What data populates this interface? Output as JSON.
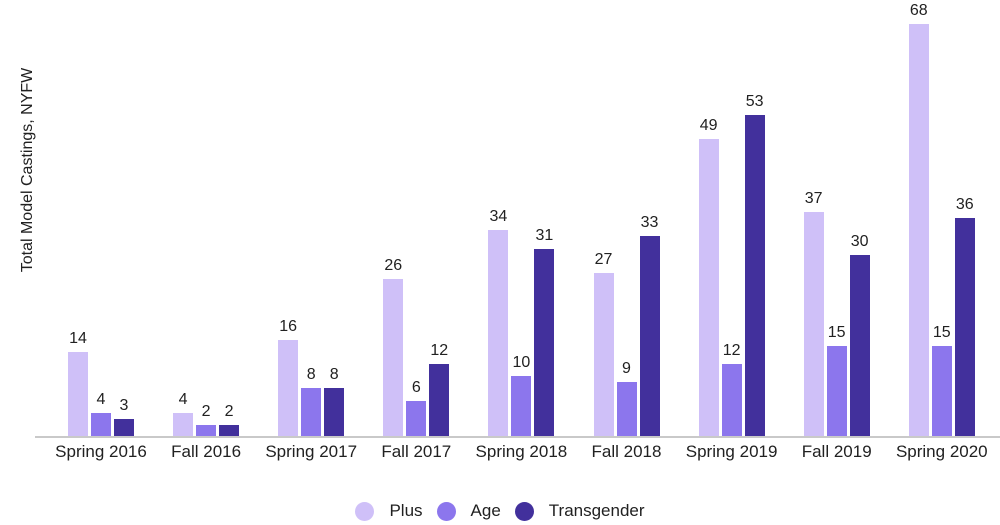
{
  "chart_data": {
    "type": "bar",
    "title": "",
    "ylabel": "Total Model Castings, NYFW",
    "xlabel": "",
    "categories": [
      "Spring 2016",
      "Fall 2016",
      "Spring 2017",
      "Fall 2017",
      "Spring 2018",
      "Fall 2018",
      "Spring 2019",
      "Fall 2019",
      "Spring 2020"
    ],
    "series": [
      {
        "name": "Plus",
        "color": "#CFC0F8",
        "values": [
          14,
          4,
          16,
          26,
          34,
          27,
          49,
          37,
          68
        ]
      },
      {
        "name": "Age",
        "color": "#8C76ED",
        "values": [
          4,
          2,
          8,
          6,
          10,
          9,
          12,
          15,
          15
        ]
      },
      {
        "name": "Transgender",
        "color": "#42309C",
        "values": [
          3,
          2,
          8,
          12,
          31,
          33,
          53,
          30,
          36
        ]
      }
    ],
    "ylim": [
      0,
      68
    ],
    "grid": false,
    "legend_position": "bottom",
    "value_labels": true,
    "axis_color": "#c9c9c9",
    "label_color": "#212121",
    "background_color": "#ffffff"
  }
}
